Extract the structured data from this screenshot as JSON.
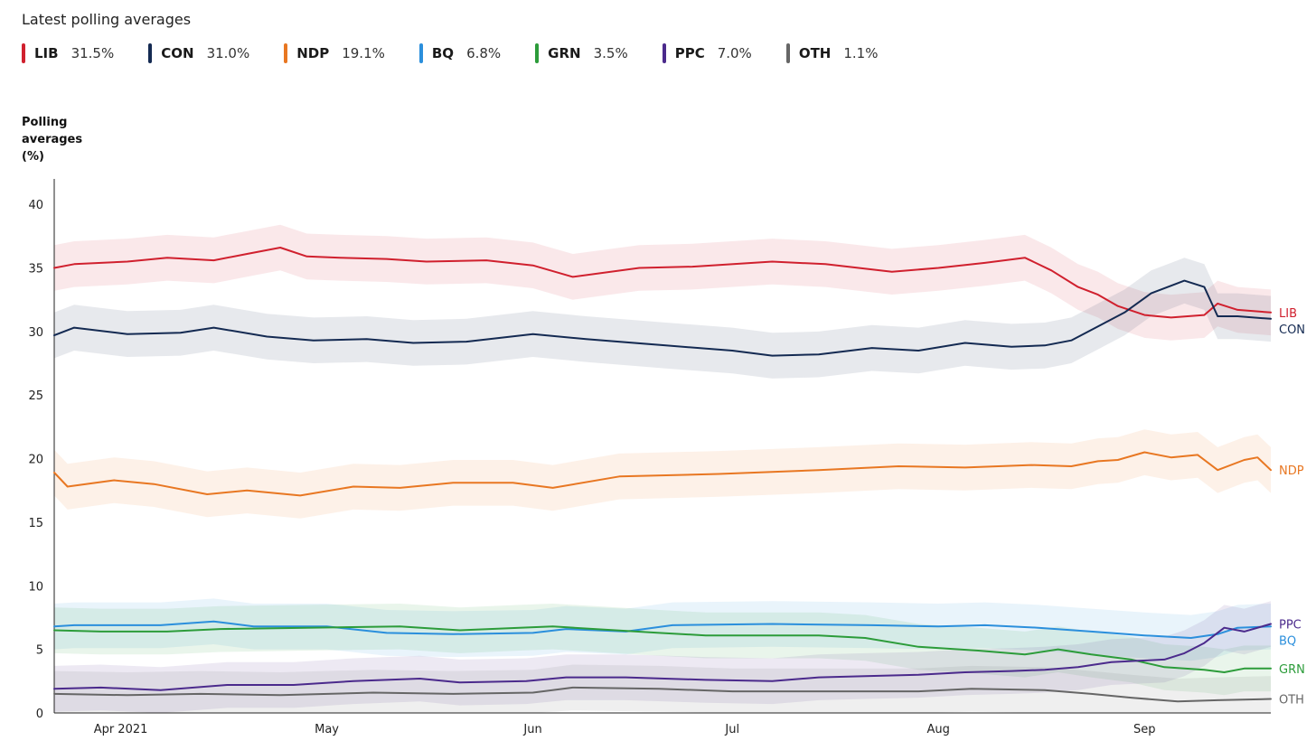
{
  "header": {
    "title": "Latest polling averages"
  },
  "legend": [
    {
      "code": "LIB",
      "value": "31.5%",
      "color": "#d0202e"
    },
    {
      "code": "CON",
      "value": "31.0%",
      "color": "#142a52"
    },
    {
      "code": "NDP",
      "value": "19.1%",
      "color": "#e87722"
    },
    {
      "code": "BQ",
      "value": "6.8%",
      "color": "#2b8fdc"
    },
    {
      "code": "GRN",
      "value": "3.5%",
      "color": "#2c9c3a"
    },
    {
      "code": "PPC",
      "value": "7.0%",
      "color": "#4b2a8c"
    },
    {
      "code": "OTH",
      "value": "1.1%",
      "color": "#666666"
    }
  ],
  "chart_data": {
    "type": "line",
    "title": "Latest polling averages",
    "ylabel": "Polling averages (%)",
    "ylim": [
      0,
      42
    ],
    "yticks": [
      0,
      5,
      10,
      15,
      20,
      25,
      30,
      35,
      40
    ],
    "x_range": [
      "2021-03-21",
      "2021-09-20"
    ],
    "xticks": [
      {
        "label": "Apr 2021",
        "date": "2021-03-31"
      },
      {
        "label": "May",
        "date": "2021-05-01"
      },
      {
        "label": "Jun",
        "date": "2021-06-01"
      },
      {
        "label": "Jul",
        "date": "2021-07-01"
      },
      {
        "label": "Aug",
        "date": "2021-08-01"
      },
      {
        "label": "Sep",
        "date": "2021-09-01"
      }
    ],
    "grid": false,
    "legend_position": "top",
    "band_width": 1.8,
    "series": [
      {
        "name": "LIB",
        "color": "#d0202e",
        "dates": [
          "2021-03-21",
          "2021-03-24",
          "2021-04-01",
          "2021-04-07",
          "2021-04-14",
          "2021-04-19",
          "2021-04-24",
          "2021-04-28",
          "2021-05-03",
          "2021-05-10",
          "2021-05-16",
          "2021-05-25",
          "2021-06-01",
          "2021-06-07",
          "2021-06-17",
          "2021-06-25",
          "2021-07-07",
          "2021-07-15",
          "2021-07-25",
          "2021-08-01",
          "2021-08-08",
          "2021-08-14",
          "2021-08-18",
          "2021-08-22",
          "2021-08-25",
          "2021-08-28",
          "2021-09-01",
          "2021-09-05",
          "2021-09-10",
          "2021-09-12",
          "2021-09-15",
          "2021-09-20"
        ],
        "values": [
          35.0,
          35.3,
          35.5,
          35.8,
          35.6,
          36.1,
          36.6,
          35.9,
          35.8,
          35.7,
          35.5,
          35.6,
          35.2,
          34.3,
          35.0,
          35.1,
          35.5,
          35.3,
          34.7,
          35.0,
          35.4,
          35.8,
          34.8,
          33.5,
          32.9,
          32.0,
          31.3,
          31.1,
          31.3,
          32.2,
          31.7,
          31.5
        ]
      },
      {
        "name": "CON",
        "color": "#142a52",
        "dates": [
          "2021-03-21",
          "2021-03-24",
          "2021-04-01",
          "2021-04-09",
          "2021-04-14",
          "2021-04-22",
          "2021-04-29",
          "2021-05-07",
          "2021-05-14",
          "2021-05-22",
          "2021-06-01",
          "2021-06-09",
          "2021-06-21",
          "2021-07-01",
          "2021-07-07",
          "2021-07-14",
          "2021-07-22",
          "2021-07-29",
          "2021-08-05",
          "2021-08-12",
          "2021-08-17",
          "2021-08-21",
          "2021-08-25",
          "2021-08-29",
          "2021-09-02",
          "2021-09-05",
          "2021-09-07",
          "2021-09-10",
          "2021-09-12",
          "2021-09-15",
          "2021-09-20"
        ],
        "values": [
          29.7,
          30.3,
          29.8,
          29.9,
          30.3,
          29.6,
          29.3,
          29.4,
          29.1,
          29.2,
          29.8,
          29.4,
          28.9,
          28.5,
          28.1,
          28.2,
          28.7,
          28.5,
          29.1,
          28.8,
          28.9,
          29.3,
          30.4,
          31.5,
          33.0,
          33.6,
          34.0,
          33.5,
          31.2,
          31.2,
          31.0
        ]
      },
      {
        "name": "NDP",
        "color": "#e87722",
        "dates": [
          "2021-03-21",
          "2021-03-23",
          "2021-03-30",
          "2021-04-05",
          "2021-04-13",
          "2021-04-19",
          "2021-04-27",
          "2021-05-05",
          "2021-05-12",
          "2021-05-20",
          "2021-05-29",
          "2021-06-04",
          "2021-06-14",
          "2021-06-29",
          "2021-07-14",
          "2021-07-26",
          "2021-08-05",
          "2021-08-15",
          "2021-08-21",
          "2021-08-25",
          "2021-08-28",
          "2021-09-01",
          "2021-09-05",
          "2021-09-09",
          "2021-09-12",
          "2021-09-16",
          "2021-09-18",
          "2021-09-20"
        ],
        "values": [
          18.9,
          17.8,
          18.3,
          18.0,
          17.2,
          17.5,
          17.1,
          17.8,
          17.7,
          18.1,
          18.1,
          17.7,
          18.6,
          18.8,
          19.1,
          19.4,
          19.3,
          19.5,
          19.4,
          19.8,
          19.9,
          20.5,
          20.1,
          20.3,
          19.1,
          19.9,
          20.1,
          19.1
        ]
      },
      {
        "name": "BQ",
        "color": "#2b8fdc",
        "dates": [
          "2021-03-21",
          "2021-03-24",
          "2021-04-06",
          "2021-04-14",
          "2021-04-20",
          "2021-05-01",
          "2021-05-10",
          "2021-05-20",
          "2021-06-01",
          "2021-06-06",
          "2021-06-15",
          "2021-06-22",
          "2021-07-07",
          "2021-07-22",
          "2021-08-01",
          "2021-08-08",
          "2021-08-16",
          "2021-08-24",
          "2021-09-01",
          "2021-09-08",
          "2021-09-12",
          "2021-09-15",
          "2021-09-20"
        ],
        "values": [
          6.8,
          6.9,
          6.9,
          7.2,
          6.8,
          6.8,
          6.3,
          6.2,
          6.3,
          6.6,
          6.4,
          6.9,
          7.0,
          6.9,
          6.8,
          6.9,
          6.7,
          6.4,
          6.1,
          5.9,
          6.2,
          6.7,
          6.8
        ]
      },
      {
        "name": "GRN",
        "color": "#2c9c3a",
        "dates": [
          "2021-03-21",
          "2021-03-28",
          "2021-04-07",
          "2021-04-15",
          "2021-04-28",
          "2021-05-12",
          "2021-05-21",
          "2021-05-30",
          "2021-06-04",
          "2021-06-20",
          "2021-06-27",
          "2021-07-06",
          "2021-07-14",
          "2021-07-21",
          "2021-07-29",
          "2021-08-07",
          "2021-08-14",
          "2021-08-19",
          "2021-08-24",
          "2021-08-30",
          "2021-09-04",
          "2021-09-10",
          "2021-09-13",
          "2021-09-16",
          "2021-09-20"
        ],
        "values": [
          6.5,
          6.4,
          6.4,
          6.6,
          6.7,
          6.8,
          6.5,
          6.7,
          6.8,
          6.3,
          6.1,
          6.1,
          6.1,
          5.9,
          5.2,
          4.9,
          4.6,
          5.0,
          4.6,
          4.2,
          3.6,
          3.4,
          3.2,
          3.5,
          3.5
        ]
      },
      {
        "name": "PPC",
        "color": "#4b2a8c",
        "dates": [
          "2021-03-21",
          "2021-03-28",
          "2021-04-06",
          "2021-04-16",
          "2021-04-26",
          "2021-05-05",
          "2021-05-15",
          "2021-05-21",
          "2021-05-31",
          "2021-06-06",
          "2021-06-15",
          "2021-06-27",
          "2021-07-07",
          "2021-07-14",
          "2021-07-21",
          "2021-07-29",
          "2021-08-05",
          "2021-08-12",
          "2021-08-17",
          "2021-08-22",
          "2021-08-27",
          "2021-08-31",
          "2021-09-04",
          "2021-09-07",
          "2021-09-10",
          "2021-09-13",
          "2021-09-16",
          "2021-09-20"
        ],
        "values": [
          1.9,
          2.0,
          1.8,
          2.2,
          2.2,
          2.5,
          2.7,
          2.4,
          2.5,
          2.8,
          2.8,
          2.6,
          2.5,
          2.8,
          2.9,
          3.0,
          3.2,
          3.3,
          3.4,
          3.6,
          4.0,
          4.1,
          4.2,
          4.7,
          5.5,
          6.7,
          6.4,
          7.0
        ]
      },
      {
        "name": "OTH",
        "color": "#666666",
        "dates": [
          "2021-03-21",
          "2021-04-01",
          "2021-04-12",
          "2021-04-24",
          "2021-05-08",
          "2021-05-20",
          "2021-06-01",
          "2021-06-07",
          "2021-06-20",
          "2021-07-01",
          "2021-07-16",
          "2021-07-29",
          "2021-08-06",
          "2021-08-17",
          "2021-08-24",
          "2021-08-30",
          "2021-09-06",
          "2021-09-12",
          "2021-09-20"
        ],
        "values": [
          1.5,
          1.4,
          1.5,
          1.4,
          1.6,
          1.5,
          1.6,
          2.0,
          1.9,
          1.7,
          1.7,
          1.7,
          1.9,
          1.8,
          1.5,
          1.2,
          0.9,
          1.0,
          1.1
        ]
      }
    ],
    "end_labels": [
      {
        "name": "LIB",
        "color": "#d0202e",
        "value": 31.5
      },
      {
        "name": "CON",
        "color": "#142a52",
        "value": 31.0
      },
      {
        "name": "NDP",
        "color": "#e87722",
        "value": 19.1
      },
      {
        "name": "PPC",
        "color": "#4b2a8c",
        "value": 7.0
      },
      {
        "name": "BQ",
        "color": "#2b8fdc",
        "value": 6.8
      },
      {
        "name": "GRN",
        "color": "#2c9c3a",
        "value": 3.5
      },
      {
        "name": "OTH",
        "color": "#666666",
        "value": 1.1
      }
    ]
  }
}
